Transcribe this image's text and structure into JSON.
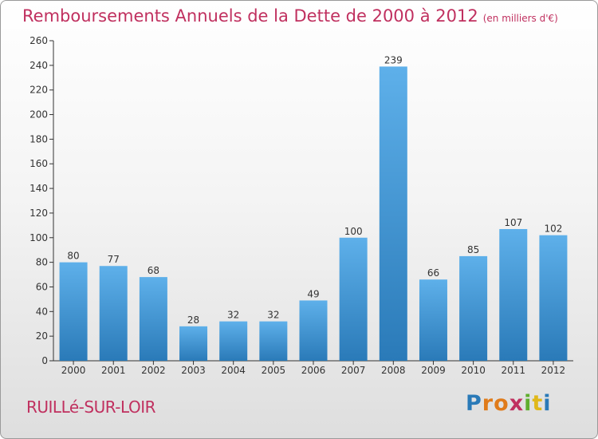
{
  "title": "Remboursements Annuels de la Dette de 2000 à 2012",
  "unit_label": "(en milliers d'€)",
  "commune": "RUILLé-SUR-LOIR",
  "logo": {
    "text": "Proxiti",
    "letters": [
      "P",
      "r",
      "o",
      "x",
      "i",
      "t",
      "i"
    ],
    "colors": [
      "#2a7ab8",
      "#e07b1a",
      "#e07b1a",
      "#c0305f",
      "#5fae2e",
      "#e0b81a",
      "#2a7ab8"
    ]
  },
  "colors": {
    "title": "#c0305f",
    "bar_light": "#5eb0ea",
    "bar_dark": "#2a7ab8"
  },
  "chart_data": {
    "type": "bar",
    "categories": [
      "2000",
      "2001",
      "2002",
      "2003",
      "2004",
      "2005",
      "2006",
      "2007",
      "2008",
      "2009",
      "2010",
      "2011",
      "2012"
    ],
    "values": [
      80,
      77,
      68,
      28,
      32,
      32,
      49,
      100,
      239,
      66,
      85,
      107,
      102
    ],
    "title": "Remboursements Annuels de la Dette de 2000 à 2012",
    "ylim": [
      0,
      260
    ],
    "yticks": [
      0,
      20,
      40,
      60,
      80,
      100,
      120,
      140,
      160,
      180,
      200,
      220,
      240,
      260
    ],
    "grid": false
  }
}
